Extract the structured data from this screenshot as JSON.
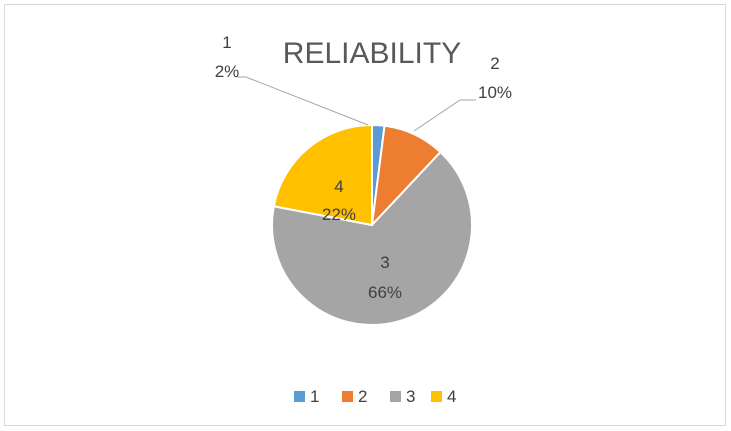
{
  "chart_data": {
    "type": "pie",
    "title": "RELIABILITY",
    "categories": [
      "1",
      "2",
      "3",
      "4"
    ],
    "values": [
      2,
      10,
      66,
      22
    ],
    "value_labels": [
      "2%",
      "10%",
      "66%",
      "22%"
    ],
    "colors": [
      "#5b9bd5",
      "#ed7d31",
      "#a5a5a5",
      "#ffc000"
    ],
    "legend_position": "bottom"
  }
}
